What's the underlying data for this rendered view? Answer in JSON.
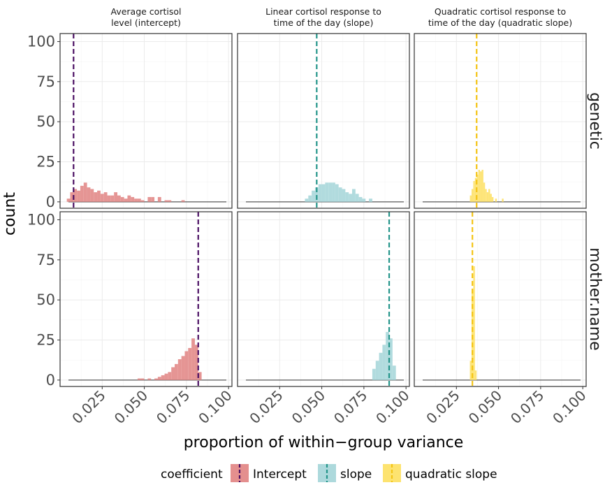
{
  "chart_data": {
    "type": "histogram",
    "facet_columns": [
      {
        "id": "intercept",
        "title_lines": [
          "Average cortisol",
          "level (intercept)"
        ],
        "color": "#e48f8e",
        "line_color": "#4b0f63"
      },
      {
        "id": "slope",
        "title_lines": [
          "Linear cortisol response to",
          "time of the day (slope)"
        ],
        "color": "#add9dc",
        "line_color": "#24958a"
      },
      {
        "id": "quadratic",
        "title_lines": [
          "Quadratic cortisol response to",
          "time of the day (quadratic slope)"
        ],
        "color": "#fde370",
        "line_color": "#f4c415"
      }
    ],
    "facet_rows": [
      "genetic",
      "mother.name"
    ],
    "xlabel": "proportion of within−group variance",
    "ylabel": "count",
    "xlim": [
      0.0,
      0.102
    ],
    "ylim": [
      -4,
      105
    ],
    "x_ticks": [
      0.025,
      0.05,
      0.075,
      0.1
    ],
    "x_tick_labels": [
      "0.025",
      "0.050",
      "0.075",
      "0.100"
    ],
    "y_ticks": [
      0,
      25,
      50,
      75,
      100
    ],
    "y_tick_labels": [
      "0",
      "25",
      "50",
      "75",
      "100"
    ],
    "bin_width": 0.002,
    "panels": [
      {
        "row": "genetic",
        "col": "intercept",
        "vline": 0.008,
        "bins": [
          [
            0.004,
            2
          ],
          [
            0.006,
            6
          ],
          [
            0.008,
            8
          ],
          [
            0.01,
            7
          ],
          [
            0.012,
            10
          ],
          [
            0.014,
            12
          ],
          [
            0.016,
            9
          ],
          [
            0.018,
            8
          ],
          [
            0.02,
            6
          ],
          [
            0.022,
            7
          ],
          [
            0.024,
            5
          ],
          [
            0.026,
            6
          ],
          [
            0.028,
            4
          ],
          [
            0.03,
            4
          ],
          [
            0.032,
            6
          ],
          [
            0.034,
            4
          ],
          [
            0.036,
            3
          ],
          [
            0.038,
            2
          ],
          [
            0.04,
            4
          ],
          [
            0.042,
            3
          ],
          [
            0.044,
            2
          ],
          [
            0.046,
            2
          ],
          [
            0.048,
            1
          ],
          [
            0.052,
            3
          ],
          [
            0.054,
            3
          ],
          [
            0.058,
            3
          ],
          [
            0.062,
            1
          ],
          [
            0.064,
            1
          ],
          [
            0.072,
            1
          ]
        ]
      },
      {
        "row": "genetic",
        "col": "slope",
        "vline": 0.047,
        "bins": [
          [
            0.04,
            2
          ],
          [
            0.042,
            4
          ],
          [
            0.044,
            7
          ],
          [
            0.046,
            9
          ],
          [
            0.048,
            11
          ],
          [
            0.05,
            11
          ],
          [
            0.052,
            12
          ],
          [
            0.054,
            12
          ],
          [
            0.056,
            12
          ],
          [
            0.058,
            11
          ],
          [
            0.06,
            9
          ],
          [
            0.062,
            8
          ],
          [
            0.064,
            6
          ],
          [
            0.066,
            5
          ],
          [
            0.068,
            8
          ],
          [
            0.07,
            5
          ],
          [
            0.072,
            3
          ],
          [
            0.074,
            2
          ],
          [
            0.078,
            2
          ]
        ]
      },
      {
        "row": "genetic",
        "col": "quadratic",
        "vline": 0.037,
        "bins": [
          [
            0.033,
            4
          ],
          [
            0.034,
            8
          ],
          [
            0.035,
            13
          ],
          [
            0.036,
            15
          ],
          [
            0.037,
            17
          ],
          [
            0.038,
            20
          ],
          [
            0.039,
            19
          ],
          [
            0.04,
            20
          ],
          [
            0.041,
            12
          ],
          [
            0.042,
            8
          ],
          [
            0.043,
            6
          ],
          [
            0.044,
            8
          ],
          [
            0.045,
            5
          ],
          [
            0.046,
            3
          ],
          [
            0.048,
            2
          ],
          [
            0.052,
            2
          ]
        ]
      },
      {
        "row": "mother.name",
        "col": "intercept",
        "vline": 0.082,
        "bins": [
          [
            0.046,
            1
          ],
          [
            0.048,
            1
          ],
          [
            0.052,
            1
          ],
          [
            0.056,
            1
          ],
          [
            0.058,
            2
          ],
          [
            0.06,
            3
          ],
          [
            0.062,
            4
          ],
          [
            0.064,
            5
          ],
          [
            0.066,
            8
          ],
          [
            0.068,
            10
          ],
          [
            0.07,
            13
          ],
          [
            0.072,
            15
          ],
          [
            0.074,
            18
          ],
          [
            0.076,
            20
          ],
          [
            0.078,
            26
          ],
          [
            0.08,
            22
          ],
          [
            0.082,
            5
          ]
        ]
      },
      {
        "row": "mother.name",
        "col": "slope",
        "vline": 0.09,
        "bins": [
          [
            0.08,
            7
          ],
          [
            0.082,
            12
          ],
          [
            0.084,
            17
          ],
          [
            0.086,
            22
          ],
          [
            0.088,
            30
          ],
          [
            0.09,
            26
          ],
          [
            0.092,
            9
          ]
        ]
      },
      {
        "row": "mother.name",
        "col": "quadratic",
        "vline": 0.0345,
        "bins": [
          [
            0.033,
            12
          ],
          [
            0.034,
            56
          ],
          [
            0.035,
            71
          ],
          [
            0.036,
            6
          ]
        ]
      }
    ],
    "legend": {
      "title": "coefficient",
      "position": "bottom",
      "items": [
        {
          "label": "Intercept",
          "fill": "#e48f8e",
          "line": "#4b0f63"
        },
        {
          "label": "slope",
          "fill": "#add9dc",
          "line": "#24958a"
        },
        {
          "label": "quadratic slope",
          "fill": "#fde370",
          "line": "#f4c415"
        }
      ]
    },
    "grid": true
  }
}
